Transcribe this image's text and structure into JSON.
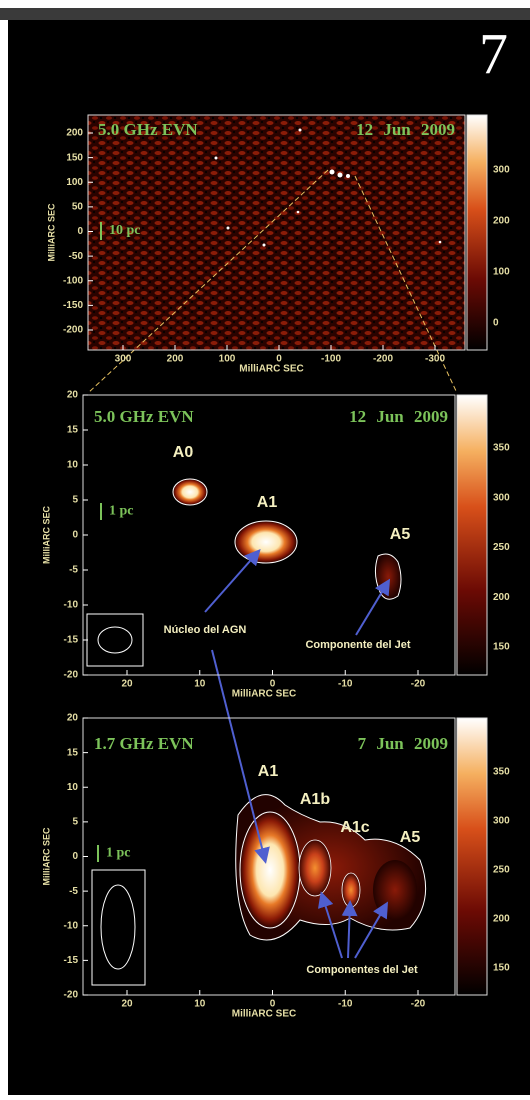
{
  "page_number": "7",
  "panels": [
    {
      "title": "5.0 GHz EVN",
      "date": "12 Jun 2009",
      "scale_label": "10 pc",
      "x_axis_label": "MilliARC SEC",
      "y_axis_label": "MilliARC SEC",
      "x_ticks": [
        "300",
        "200",
        "100",
        "0",
        "-100",
        "-200",
        "-300"
      ],
      "y_ticks": [
        "200",
        "150",
        "100",
        "50",
        "0",
        "-50",
        "-100",
        "-150",
        "-200"
      ],
      "colorbar_ticks": [
        "300",
        "200",
        "100",
        "0"
      ],
      "labels": []
    },
    {
      "title": "5.0 GHz EVN",
      "date": "12 Jun 2009",
      "scale_label": "1 pc",
      "x_axis_label": "MilliARC SEC",
      "y_axis_label": "MilliARC SEC",
      "x_ticks": [
        "20",
        "10",
        "0",
        "-10",
        "-20"
      ],
      "y_ticks": [
        "20",
        "15",
        "10",
        "5",
        "0",
        "-5",
        "-10",
        "-15",
        "-20"
      ],
      "colorbar_ticks": [
        "350",
        "300",
        "250",
        "200",
        "150"
      ],
      "labels": [
        "A0",
        "A1",
        "A5",
        "Núcleo del AGN",
        "Componente del Jet"
      ]
    },
    {
      "title": "1.7 GHz EVN",
      "date": "7 Jun 2009",
      "scale_label": "1 pc",
      "x_axis_label": "MilliARC SEC",
      "y_axis_label": "MilliARC SEC",
      "x_ticks": [
        "20",
        "10",
        "0",
        "-10",
        "-20"
      ],
      "y_ticks": [
        "20",
        "15",
        "10",
        "5",
        "0",
        "-5",
        "-10",
        "-15",
        "-20"
      ],
      "colorbar_ticks": [
        "350",
        "300",
        "250",
        "200",
        "150"
      ],
      "labels": [
        "A1",
        "A1b",
        "A1c",
        "A5",
        "Componentes del Jet"
      ]
    }
  ]
}
